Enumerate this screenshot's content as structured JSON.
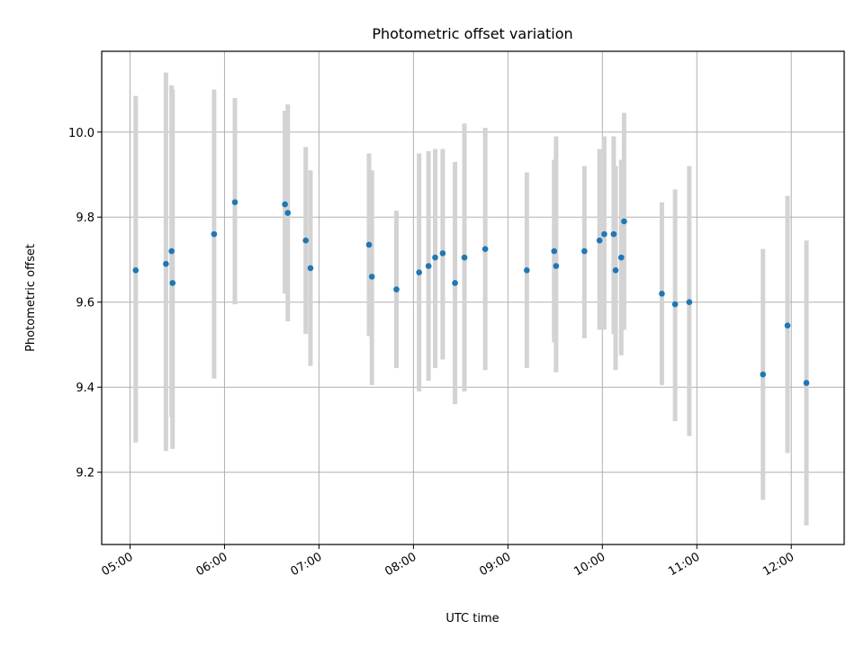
{
  "chart_data": {
    "type": "scatter",
    "title": "Photometric offset variation",
    "xlabel": "UTC time",
    "ylabel": "Photometric offset",
    "x_unit": "hours (UTC)",
    "xlim": [
      4.7,
      12.56
    ],
    "ylim": [
      9.03,
      10.19
    ],
    "grid": true,
    "x_ticks": [
      {
        "value": 5,
        "label": "05:00"
      },
      {
        "value": 6,
        "label": "06:00"
      },
      {
        "value": 7,
        "label": "07:00"
      },
      {
        "value": 8,
        "label": "08:00"
      },
      {
        "value": 9,
        "label": "09:00"
      },
      {
        "value": 10,
        "label": "10:00"
      },
      {
        "value": 11,
        "label": "11:00"
      },
      {
        "value": 12,
        "label": "12:00"
      }
    ],
    "y_ticks": [
      {
        "value": 9.2,
        "label": "9.2"
      },
      {
        "value": 9.4,
        "label": "9.4"
      },
      {
        "value": 9.6,
        "label": "9.6"
      },
      {
        "value": 9.8,
        "label": "9.8"
      },
      {
        "value": 10.0,
        "label": "10.0"
      }
    ],
    "point_color": "#1f77b4",
    "errorbar_color": "#d3d3d3",
    "points": [
      {
        "x": 5.06,
        "y": 9.675,
        "lo": 9.27,
        "hi": 10.085
      },
      {
        "x": 5.38,
        "y": 9.69,
        "lo": 9.25,
        "hi": 10.14
      },
      {
        "x": 5.44,
        "y": 9.72,
        "lo": 9.33,
        "hi": 10.11
      },
      {
        "x": 5.45,
        "y": 9.645,
        "lo": 9.255,
        "hi": 10.1
      },
      {
        "x": 5.89,
        "y": 9.76,
        "lo": 9.42,
        "hi": 10.1
      },
      {
        "x": 6.11,
        "y": 9.835,
        "lo": 9.595,
        "hi": 10.08
      },
      {
        "x": 6.64,
        "y": 9.83,
        "lo": 9.62,
        "hi": 10.05
      },
      {
        "x": 6.67,
        "y": 9.81,
        "lo": 9.555,
        "hi": 10.065
      },
      {
        "x": 6.86,
        "y": 9.745,
        "lo": 9.525,
        "hi": 9.965
      },
      {
        "x": 6.91,
        "y": 9.68,
        "lo": 9.45,
        "hi": 9.91
      },
      {
        "x": 7.53,
        "y": 9.735,
        "lo": 9.52,
        "hi": 9.95
      },
      {
        "x": 7.56,
        "y": 9.66,
        "lo": 9.405,
        "hi": 9.91
      },
      {
        "x": 7.82,
        "y": 9.63,
        "lo": 9.445,
        "hi": 9.815
      },
      {
        "x": 8.06,
        "y": 9.67,
        "lo": 9.39,
        "hi": 9.95
      },
      {
        "x": 8.16,
        "y": 9.685,
        "lo": 9.415,
        "hi": 9.955
      },
      {
        "x": 8.23,
        "y": 9.705,
        "lo": 9.445,
        "hi": 9.96
      },
      {
        "x": 8.31,
        "y": 9.715,
        "lo": 9.465,
        "hi": 9.96
      },
      {
        "x": 8.44,
        "y": 9.645,
        "lo": 9.36,
        "hi": 9.93
      },
      {
        "x": 8.54,
        "y": 9.705,
        "lo": 9.39,
        "hi": 10.02
      },
      {
        "x": 8.76,
        "y": 9.725,
        "lo": 9.44,
        "hi": 10.01
      },
      {
        "x": 9.2,
        "y": 9.675,
        "lo": 9.445,
        "hi": 9.905
      },
      {
        "x": 9.49,
        "y": 9.72,
        "lo": 9.505,
        "hi": 9.935
      },
      {
        "x": 9.51,
        "y": 9.685,
        "lo": 9.435,
        "hi": 9.99
      },
      {
        "x": 9.81,
        "y": 9.72,
        "lo": 9.515,
        "hi": 9.92
      },
      {
        "x": 9.97,
        "y": 9.745,
        "lo": 9.535,
        "hi": 9.96
      },
      {
        "x": 10.02,
        "y": 9.76,
        "lo": 9.535,
        "hi": 9.99
      },
      {
        "x": 10.12,
        "y": 9.76,
        "lo": 9.525,
        "hi": 9.99
      },
      {
        "x": 10.14,
        "y": 9.675,
        "lo": 9.44,
        "hi": 9.92
      },
      {
        "x": 10.2,
        "y": 9.705,
        "lo": 9.475,
        "hi": 9.935
      },
      {
        "x": 10.23,
        "y": 9.79,
        "lo": 9.535,
        "hi": 10.045
      },
      {
        "x": 10.63,
        "y": 9.62,
        "lo": 9.405,
        "hi": 9.835
      },
      {
        "x": 10.77,
        "y": 9.595,
        "lo": 9.32,
        "hi": 9.865
      },
      {
        "x": 10.92,
        "y": 9.6,
        "lo": 9.285,
        "hi": 9.92
      },
      {
        "x": 11.7,
        "y": 9.43,
        "lo": 9.135,
        "hi": 9.725
      },
      {
        "x": 11.96,
        "y": 9.545,
        "lo": 9.245,
        "hi": 9.85
      },
      {
        "x": 12.16,
        "y": 9.41,
        "lo": 9.075,
        "hi": 9.745
      }
    ]
  }
}
